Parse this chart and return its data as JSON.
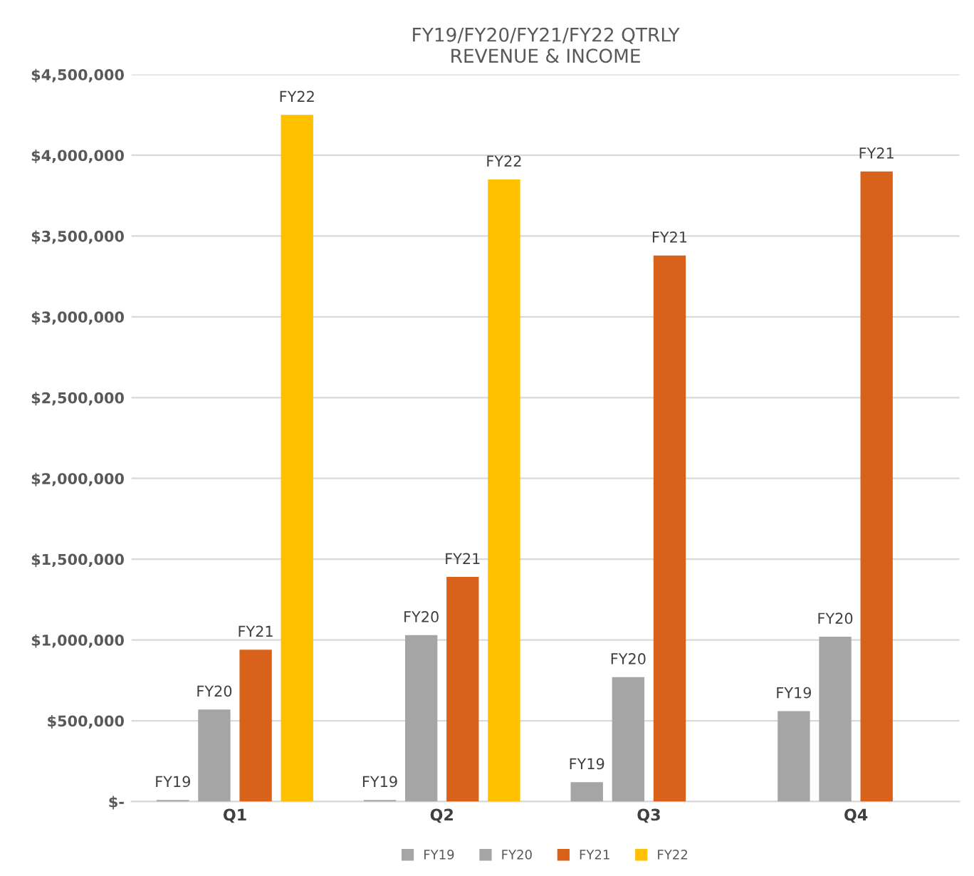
{
  "chart_data": {
    "type": "bar",
    "title": "FY19/FY20/FY21/FY22 QTRLY\nREVENUE & INCOME",
    "categories": [
      "Q1",
      "Q2",
      "Q3",
      "Q4"
    ],
    "series": [
      {
        "name": "FY19",
        "color": "#a5a5a5",
        "values": [
          10000,
          10000,
          120000,
          560000
        ],
        "value_labels": [
          "FY19",
          "FY19",
          "FY19",
          "FY19"
        ]
      },
      {
        "name": "FY20",
        "color": "#a5a5a5",
        "values": [
          570000,
          1030000,
          770000,
          1020000
        ],
        "value_labels": [
          "FY20",
          "FY20",
          "FY20",
          "FY20"
        ]
      },
      {
        "name": "FY21",
        "color": "#d9621a",
        "values": [
          940000,
          1390000,
          3380000,
          3900000
        ],
        "value_labels": [
          "FY21",
          "FY21",
          "FY21",
          "FY21"
        ]
      },
      {
        "name": "FY22",
        "color": "#ffc000",
        "values": [
          4250000,
          3850000,
          null,
          null
        ],
        "value_labels": [
          "FY22",
          "FY22",
          null,
          null
        ]
      }
    ],
    "ylim": [
      0,
      4500000
    ],
    "yticks": [
      {
        "value": 0,
        "label": "$-"
      },
      {
        "value": 500000,
        "label": "$500,000"
      },
      {
        "value": 1000000,
        "label": "$1,000,000"
      },
      {
        "value": 1500000,
        "label": "$1,500,000"
      },
      {
        "value": 2000000,
        "label": "$2,000,000"
      },
      {
        "value": 2500000,
        "label": "$2,500,000"
      },
      {
        "value": 3000000,
        "label": "$3,000,000"
      },
      {
        "value": 3500000,
        "label": "$3,500,000"
      },
      {
        "value": 4000000,
        "label": "$4,000,000"
      },
      {
        "value": 4500000,
        "label": "$4,500,000"
      }
    ],
    "grid": "y",
    "legend": "bottom"
  }
}
